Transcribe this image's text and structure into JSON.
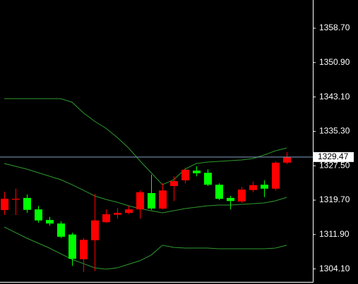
{
  "chart_data": {
    "type": "candlestick",
    "open": [
      1317.46,
      1319.8,
      1320.2,
      1317.6,
      1315.2,
      1314.4,
      1311.9,
      1306.3,
      1310.6,
      1314.7,
      1316.4,
      1316.8,
      1317.6,
      1321.3,
      1317.8,
      1322.9,
      1324.2,
      1326.4,
      1325.9,
      1323.2,
      1320.2,
      1319.4,
      1322.0,
      1323.2,
      1322.3,
      1328.2
    ],
    "high": [
      1321.62,
      1322.3,
      1321.0,
      1318.4,
      1315.9,
      1314.9,
      1312.3,
      1311.1,
      1321.1,
      1317.6,
      1317.9,
      1318.4,
      1321.9,
      1325.5,
      1323.5,
      1325.1,
      1327.1,
      1327.4,
      1326.7,
      1323.5,
      1320.7,
      1322.7,
      1323.9,
      1324.2,
      1328.5,
      1330.6
    ],
    "low": [
      1316.34,
      1316.3,
      1316.8,
      1314.6,
      1313.9,
      1311.1,
      1304.8,
      1303.4,
      1303.6,
      1314.6,
      1315.5,
      1316.5,
      1315.5,
      1317.5,
      1317.6,
      1319.5,
      1323.5,
      1325.1,
      1322.9,
      1319.7,
      1317.6,
      1319.1,
      1321.5,
      1320.4,
      1321.9,
      1327.9
    ],
    "close": [
      1320.02,
      1320.0,
      1317.5,
      1315.1,
      1314.4,
      1311.4,
      1306.4,
      1310.7,
      1315.1,
      1316.5,
      1316.8,
      1317.6,
      1321.5,
      1317.8,
      1321.9,
      1324.0,
      1326.6,
      1325.8,
      1323.2,
      1320.0,
      1319.5,
      1322.1,
      1323.1,
      1322.3,
      1328.2,
      1329.47
    ],
    "up_color": "#ff0000",
    "down_color": "#00ff00",
    "bands": [
      [
        1342.72,
        1342.72,
        1342.72,
        1342.72,
        1342.72,
        1342.72,
        1341.92,
        1339.52,
        1337.6,
        1336.0,
        1333.92,
        1331.53,
        1328.65,
        1325.93,
        1323.21,
        1324.33,
        1326.73,
        1328.01,
        1328.33,
        1328.49,
        1328.65,
        1328.81,
        1329.13,
        1329.93,
        1330.89,
        1331.53
      ],
      [
        1328.01,
        1327.37,
        1326.73,
        1325.93,
        1325.13,
        1324.33,
        1323.21,
        1321.94,
        1320.66,
        1319.86,
        1319.22,
        1318.42,
        1317.78,
        1317.3,
        1316.82,
        1317.3,
        1317.78,
        1318.1,
        1318.42,
        1318.58,
        1318.58,
        1318.74,
        1318.9,
        1319.06,
        1319.54,
        1320.34
      ],
      [
        1313.62,
        1312.34,
        1311.07,
        1309.95,
        1308.83,
        1307.55,
        1306.27,
        1305.31,
        1304.35,
        1304.03,
        1304.35,
        1305.15,
        1305.95,
        1307.23,
        1309.47,
        1308.99,
        1308.83,
        1308.83,
        1308.83,
        1308.67,
        1308.67,
        1308.67,
        1308.67,
        1308.67,
        1308.83,
        1309.47
      ]
    ],
    "band_color": "#2f9a2f",
    "current_price": 1329.47,
    "price_line_color": "#7f9fbf",
    "ylim": [
      1301.16,
      1365.09
    ],
    "yticks": [
      {
        "value": 1304.1,
        "label": "1304.10"
      },
      {
        "value": 1311.9,
        "label": "1311.90"
      },
      {
        "value": 1319.7,
        "label": "1319.70"
      },
      {
        "value": 1327.5,
        "label": "1327.50"
      },
      {
        "value": 1335.3,
        "label": "1335.30"
      },
      {
        "value": 1343.1,
        "label": "1343.10"
      },
      {
        "value": 1350.9,
        "label": "1350.90"
      },
      {
        "value": 1358.7,
        "label": "1358.70"
      }
    ]
  }
}
